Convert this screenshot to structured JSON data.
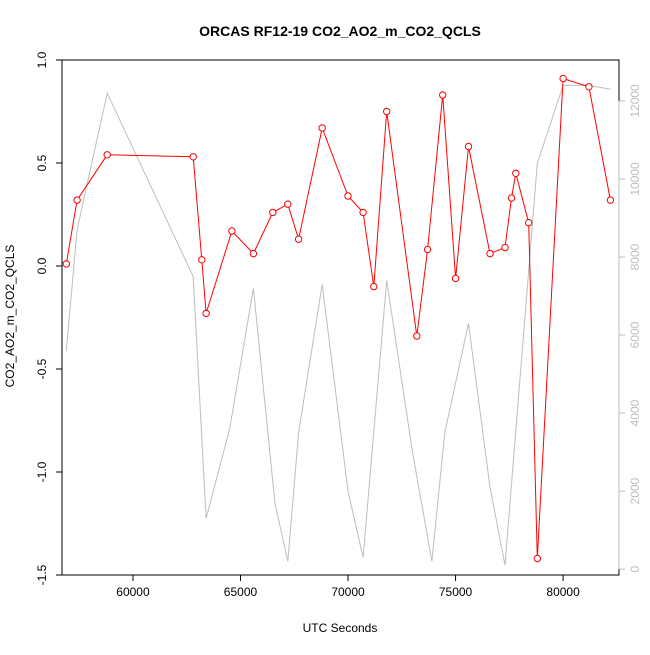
{
  "chart_data": {
    "type": "line",
    "title": "ORCAS RF12-19 CO2_AO2_m_CO2_QCLS",
    "xlabel": "UTC Seconds",
    "ylabel": "CO2_AO2_m_CO2_QCLS",
    "xlim": [
      56700,
      82600
    ],
    "ylim": [
      -1.5,
      1.0
    ],
    "y2lim": [
      -150,
      13050
    ],
    "xticks": [
      60000,
      65000,
      70000,
      75000,
      80000
    ],
    "xtick_labels": [
      "60000",
      "65000",
      "70000",
      "75000",
      "80000"
    ],
    "yticks": [
      -1.5,
      -1.0,
      -0.5,
      0.0,
      0.5,
      1.0
    ],
    "ytick_labels": [
      "-1.5",
      "-1.0",
      "-0.5",
      "0.0",
      "0.5",
      "1.0"
    ],
    "y2ticks": [
      0,
      2000,
      4000,
      6000,
      8000,
      10000,
      12000
    ],
    "y2tick_labels": [
      "0",
      "2000",
      "4000",
      "6000",
      "8000",
      "10000",
      "12000"
    ],
    "grid": false,
    "colors": {
      "primary": "#ff0000",
      "secondary": "#bebebe",
      "axis": "#000000",
      "axis2": "#bebebe"
    },
    "series": [
      {
        "axis": "left",
        "style": "line+circles",
        "x": [
          56900,
          57400,
          58800,
          62800,
          63200,
          63400,
          64600,
          65600,
          66500,
          67200,
          67700,
          68800,
          70000,
          70700,
          71200,
          71800,
          73200,
          73700,
          74400,
          75000,
          75600,
          76600,
          77300,
          77600,
          77800,
          78400,
          78800,
          80000,
          81200,
          82200
        ],
        "y": [
          0.01,
          0.32,
          0.54,
          0.53,
          0.03,
          -0.23,
          0.17,
          0.06,
          0.26,
          0.3,
          0.13,
          0.67,
          0.34,
          0.26,
          -0.1,
          0.75,
          -0.34,
          0.08,
          0.83,
          -0.06,
          0.58,
          0.06,
          0.09,
          0.33,
          0.45,
          0.21,
          -1.42,
          0.91,
          0.87,
          0.32
        ]
      },
      {
        "axis": "right",
        "style": "line",
        "x": [
          56900,
          57400,
          58800,
          62800,
          63400,
          64500,
          65600,
          66600,
          67200,
          67700,
          68800,
          70000,
          70700,
          71800,
          73000,
          73900,
          74500,
          75600,
          76600,
          77300,
          78800,
          80000,
          81200,
          82200
        ],
        "y": [
          5600,
          8700,
          12200,
          7500,
          1300,
          3600,
          7200,
          1700,
          200,
          3500,
          7300,
          2000,
          300,
          7400,
          3000,
          200,
          3500,
          6300,
          2100,
          100,
          10400,
          12400,
          12400,
          12300
        ]
      }
    ]
  }
}
